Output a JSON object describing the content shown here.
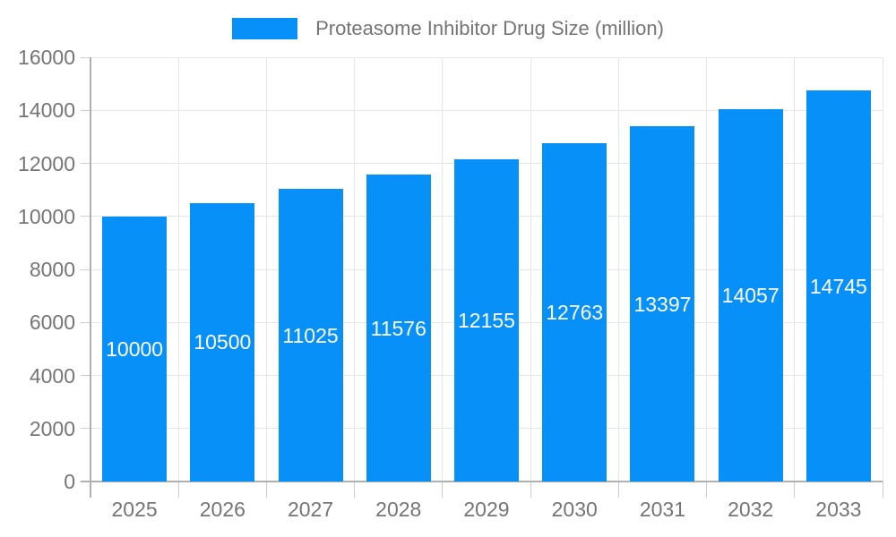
{
  "chart_data": {
    "type": "bar",
    "title": "",
    "categories": [
      "2025",
      "2026",
      "2027",
      "2028",
      "2029",
      "2030",
      "2031",
      "2032",
      "2033"
    ],
    "series": [
      {
        "name": "Proteasome Inhibitor Drug Size (million)",
        "values": [
          10000,
          10500,
          11025,
          11576,
          12155,
          12763,
          13397,
          14057,
          14745
        ]
      }
    ],
    "xlabel": "",
    "ylabel": "",
    "ylim": [
      0,
      16000
    ],
    "yticks": [
      0,
      2000,
      4000,
      6000,
      8000,
      10000,
      12000,
      14000,
      16000
    ],
    "grid": true,
    "legend_position": "top",
    "bar_color": "#0690f8",
    "value_label_color": "#ffffff",
    "axis_text_color": "#757575"
  }
}
